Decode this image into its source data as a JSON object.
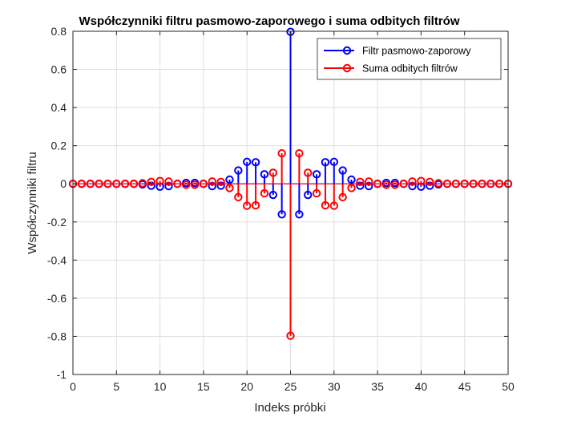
{
  "chart_data": {
    "type": "stem",
    "title": "Współczynniki filtru pasmowo-zaporowego i suma odbitych filtrów",
    "xlabel": "Indeks próbki",
    "ylabel": "Współczynniki filtru",
    "xlim": [
      0,
      50
    ],
    "ylim": [
      -1,
      0.8
    ],
    "xticks": [
      0,
      5,
      10,
      15,
      20,
      25,
      30,
      35,
      40,
      45,
      50
    ],
    "xtick_labels": [
      "0",
      "5",
      "10",
      "15",
      "20",
      "25",
      "30",
      "35",
      "40",
      "45",
      "50"
    ],
    "yticks": [
      -1,
      -0.8,
      -0.6,
      -0.4,
      -0.2,
      0,
      0.2,
      0.4,
      0.6,
      0.8
    ],
    "ytick_labels": [
      "-1",
      "-0.8",
      "-0.6",
      "-0.4",
      "-0.2",
      "0",
      "0.2",
      "0.4",
      "0.6",
      "0.8"
    ],
    "grid": true,
    "legend_position": "top-right",
    "x": [
      0,
      1,
      2,
      3,
      4,
      5,
      6,
      7,
      8,
      9,
      10,
      11,
      12,
      13,
      14,
      15,
      16,
      17,
      18,
      19,
      20,
      21,
      22,
      23,
      24,
      25,
      26,
      27,
      28,
      29,
      30,
      31,
      32,
      33,
      34,
      35,
      36,
      37,
      38,
      39,
      40,
      41,
      42,
      43,
      44,
      45,
      46,
      47,
      48,
      49,
      50
    ],
    "series": [
      {
        "name": "Filtr pasmowo-zaporowy",
        "color": "#0000ff",
        "values": [
          0,
          0,
          0,
          0,
          0,
          0,
          0,
          0,
          -0.003,
          -0.01,
          -0.015,
          -0.012,
          0,
          0.005,
          0.005,
          0,
          -0.012,
          -0.01,
          0.022,
          0.07,
          0.115,
          0.113,
          0.05,
          -0.058,
          -0.16,
          0.797,
          -0.16,
          -0.058,
          0.05,
          0.113,
          0.115,
          0.07,
          0.022,
          -0.01,
          -0.012,
          0,
          0.005,
          0.005,
          0,
          -0.012,
          -0.015,
          -0.01,
          -0.003,
          0,
          0,
          0,
          0,
          0,
          0,
          0,
          0
        ]
      },
      {
        "name": "Suma odbitych filtrów",
        "color": "#ff0000",
        "values": [
          0,
          0,
          0,
          0,
          0,
          0,
          0,
          0,
          0.003,
          0.01,
          0.015,
          0.012,
          0,
          -0.005,
          -0.005,
          0,
          0.012,
          0.01,
          -0.022,
          -0.07,
          -0.115,
          -0.113,
          -0.05,
          0.058,
          0.16,
          -0.797,
          0.16,
          0.058,
          -0.05,
          -0.113,
          -0.115,
          -0.07,
          -0.022,
          0.01,
          0.012,
          0,
          -0.005,
          -0.005,
          0,
          0.012,
          0.015,
          0.01,
          0.003,
          0,
          0,
          0,
          0,
          0,
          0,
          0,
          0
        ]
      }
    ]
  }
}
